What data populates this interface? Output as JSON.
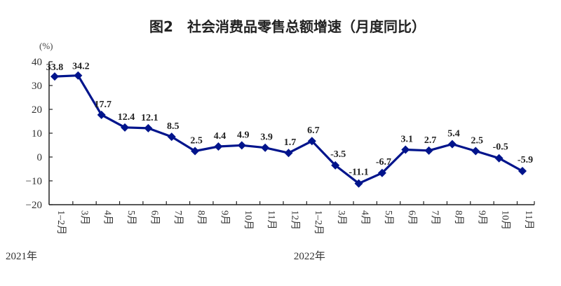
{
  "chart_data": {
    "type": "line",
    "title": "图2　社会消费品零售总额增速（月度同比）",
    "ylabel": "(%)",
    "xlabel": "",
    "ylim": [
      -20,
      40
    ],
    "yticks": [
      40,
      30,
      20,
      10,
      0,
      -10,
      -20
    ],
    "grid": false,
    "legend": null,
    "categories": [
      "1-2月",
      "3月",
      "4月",
      "5月",
      "6月",
      "7月",
      "8月",
      "9月",
      "10月",
      "11月",
      "12月",
      "1-2月",
      "3月",
      "4月",
      "5月",
      "6月",
      "7月",
      "8月",
      "9月",
      "10月",
      "11月"
    ],
    "year_groups": [
      {
        "label": "2021年",
        "start_index": 0
      },
      {
        "label": "2022年",
        "start_index": 11
      }
    ],
    "series": [
      {
        "name": "社会消费品零售总额增速",
        "color": "#00148c",
        "values": [
          33.8,
          34.2,
          17.7,
          12.4,
          12.1,
          8.5,
          2.5,
          4.4,
          4.9,
          3.9,
          1.7,
          6.7,
          -3.5,
          -11.1,
          -6.7,
          3.1,
          2.7,
          5.4,
          2.5,
          -0.5,
          -5.9
        ],
        "labels": [
          "33.8",
          "34.2",
          "17.7",
          "12.4",
          "12.1",
          "8.5",
          "2.5",
          "4.4",
          "4.9",
          "3.9",
          "1.7",
          "6.7",
          "-3.5",
          "-11.1",
          "-6.7",
          "3.1",
          "2.7",
          "5.4",
          "2.5",
          "-0.5",
          "-5.9"
        ]
      }
    ]
  },
  "colors": {
    "line": "#00148c",
    "axis": "#222222",
    "text": "#333333"
  }
}
